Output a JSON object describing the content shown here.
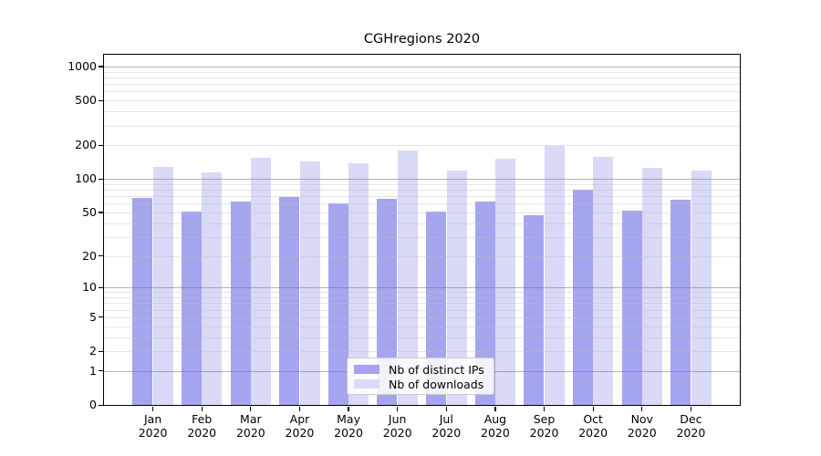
{
  "chart_data": {
    "type": "bar",
    "title": "CGHregions 2020",
    "categories": [
      "Jan 2020",
      "Feb 2020",
      "Mar 2020",
      "Apr 2020",
      "May 2020",
      "Jun 2020",
      "Jul 2020",
      "Aug 2020",
      "Sep 2020",
      "Oct 2020",
      "Nov 2020",
      "Dec 2020"
    ],
    "series": [
      {
        "name": "Nb of distinct IPs",
        "color": "#a5a5ef",
        "values": [
          68,
          51,
          63,
          69,
          60,
          66,
          51,
          63,
          47,
          80,
          52,
          65
        ]
      },
      {
        "name": "Nb of downloads",
        "color": "#d9d9f8",
        "values": [
          128,
          115,
          154,
          144,
          138,
          180,
          118,
          152,
          197,
          157,
          126,
          118
        ]
      }
    ],
    "yscale": "log10(value+1)",
    "ylim": [
      0,
      1270
    ],
    "y_tick_labels": [
      0,
      1,
      2,
      5,
      10,
      20,
      50,
      100,
      200,
      500,
      1000
    ],
    "major_gridlines": [
      1,
      10,
      100,
      1000
    ],
    "minor_gridline_decades": [
      1,
      10,
      100
    ],
    "grid": "horizontal",
    "legend_position": "inside-bottom-center",
    "colors": {
      "major_grid": "rgba(110,110,110,0.5)",
      "minor_grid": "rgba(190,190,190,0.4)",
      "axis": "#000000",
      "text": "#000000"
    }
  }
}
